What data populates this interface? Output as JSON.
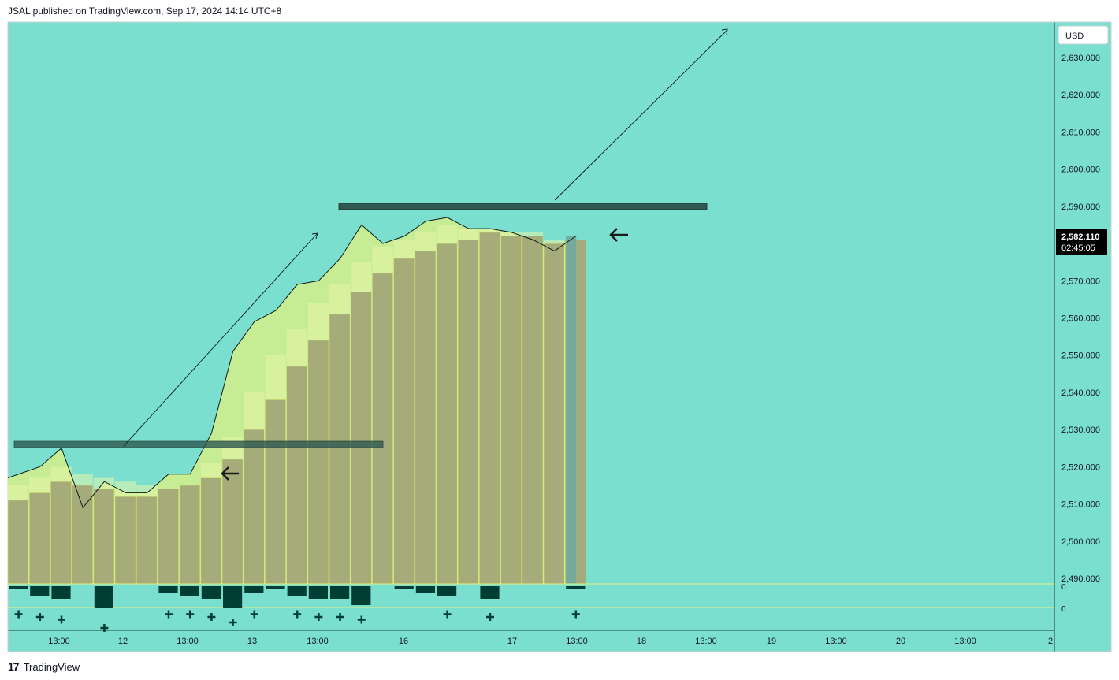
{
  "header": {
    "published_text": "JSAL published on TradingView.com, Sep 17, 2024 14:14 UTC+8"
  },
  "footer": {
    "logo_text": "TradingView",
    "logo_mark": "17"
  },
  "price_axis": {
    "currency": "USD",
    "ticks": [
      "2,630.000",
      "2,620.000",
      "2,610.000",
      "2,600.000",
      "2,590.000",
      "2,580.000",
      "2,570.000",
      "2,560.000",
      "2,550.000",
      "2,540.000",
      "2,530.000",
      "2,520.000",
      "2,510.000",
      "2,500.000",
      "2,490.000"
    ],
    "last_price": "2,582.110",
    "countdown": "02:45:05",
    "indicator_zero_1": "0",
    "indicator_zero_2": "0"
  },
  "time_axis": {
    "labels": [
      "13:00",
      "12",
      "13:00",
      "13",
      "13:00",
      "16",
      "17",
      "13:00",
      "18",
      "13:00",
      "19",
      "13:00",
      "20",
      "13:00",
      "2"
    ]
  },
  "colors": {
    "background": "#7ADFCF",
    "green_fill": "#D4EE8A",
    "volume_bar": "#A4A978",
    "dark_bar": "#003D33",
    "zone": "#2F5A52"
  },
  "chart_data": {
    "type": "bar",
    "title": "",
    "xlabel": "",
    "ylabel": "",
    "ylim": [
      2488,
      2637
    ],
    "price_line": [
      2517,
      2520,
      2525,
      2509,
      2516,
      2513,
      2513,
      2518,
      2518,
      2529,
      2551,
      2559,
      2562,
      2569,
      2570,
      2576,
      2585,
      2580,
      2582,
      2586,
      2587,
      2584,
      2584,
      2583,
      2581,
      2578,
      2582
    ],
    "upper_band": [
      2515,
      2517,
      2520,
      2518,
      2517,
      2516,
      2515,
      2514,
      2515,
      2521,
      2528,
      2540,
      2550,
      2557,
      2564,
      2569,
      2575,
      2579,
      2581,
      2583,
      2585,
      2584,
      2584,
      2583,
      2583,
      2581,
      2581
    ],
    "bar_tops": [
      2511,
      2513,
      2516,
      2515,
      2514,
      2512,
      2512,
      2514,
      2515,
      2517,
      2522,
      2530,
      2538,
      2547,
      2554,
      2561,
      2567,
      2572,
      2576,
      2578,
      2580,
      2581,
      2583,
      2582,
      2582,
      2580,
      2581
    ],
    "horizontal_zones": [
      {
        "price": 2526
      },
      {
        "price": 2590
      }
    ],
    "indicator_bars": [
      -1,
      -3,
      -4,
      0,
      -7,
      0,
      0,
      -2,
      -3,
      -4,
      -7,
      -2,
      -1,
      -3,
      -4,
      -4,
      -6,
      0,
      -1,
      -2,
      -3,
      0,
      -4,
      0,
      0,
      0,
      -1
    ],
    "indicator_markers": [
      1,
      2,
      3,
      0,
      6,
      0,
      0,
      1,
      1,
      2,
      4,
      1,
      0,
      1,
      2,
      2,
      3,
      0,
      0,
      0,
      1,
      0,
      2,
      0,
      0,
      0,
      1
    ]
  }
}
